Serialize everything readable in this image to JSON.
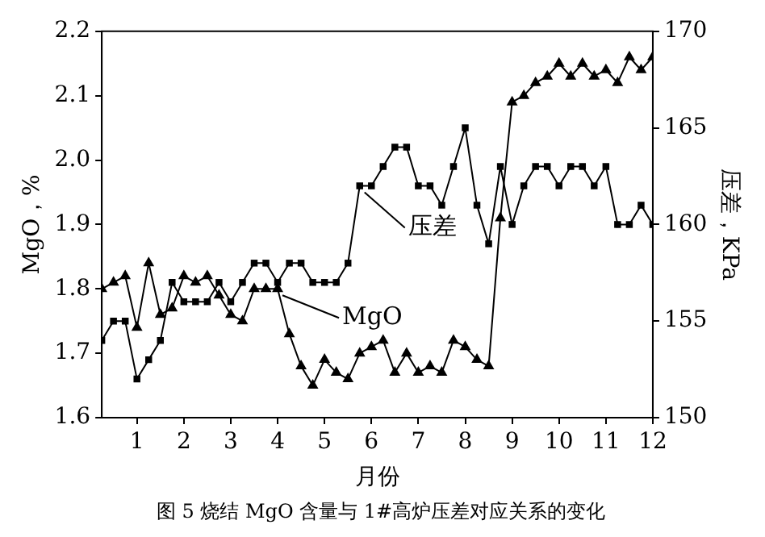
{
  "chart_data": {
    "type": "line",
    "title": "图 5 烧结 MgO 含量与 1#高炉压差对应关系的变化",
    "xlabel": "月份",
    "ylabel": "MgO，%",
    "y2label": "压差，KPa",
    "x": [
      0.25,
      0.5,
      0.75,
      1,
      1.25,
      1.5,
      1.75,
      2,
      2.25,
      2.5,
      2.75,
      3,
      3.25,
      3.5,
      3.75,
      4,
      4.25,
      4.5,
      4.75,
      5,
      5.25,
      5.5,
      5.75,
      6,
      6.25,
      6.5,
      6.75,
      7,
      7.25,
      7.5,
      7.75,
      8,
      8.25,
      8.5,
      8.75,
      9,
      9.25,
      9.5,
      9.75,
      10,
      10.25,
      10.5,
      10.75,
      11,
      11.25,
      11.5,
      11.75,
      12
    ],
    "series": [
      {
        "name": "MgO",
        "color": "#000000",
        "marker": "triangle",
        "values": [
          1.8,
          1.81,
          1.82,
          1.74,
          1.84,
          1.76,
          1.77,
          1.82,
          1.81,
          1.82,
          1.79,
          1.76,
          1.75,
          1.8,
          1.8,
          1.8,
          1.73,
          1.68,
          1.65,
          1.69,
          1.67,
          1.66,
          1.7,
          1.71,
          1.72,
          1.67,
          1.7,
          1.67,
          1.68,
          1.67,
          1.72,
          1.71,
          1.69,
          1.68,
          1.91,
          2.09,
          2.1,
          2.12,
          2.13,
          2.15,
          2.13,
          2.15,
          2.13,
          2.14,
          2.12,
          2.16,
          2.14,
          2.16
        ]
      },
      {
        "name": "压差",
        "color": "#000000",
        "marker": "square",
        "axis": "y2",
        "values": [
          154,
          155,
          155,
          152,
          153,
          154,
          157,
          156,
          156,
          156,
          157,
          156,
          157,
          158,
          158,
          157,
          158,
          158,
          157,
          157,
          157,
          158,
          162,
          162,
          163,
          164,
          164,
          162,
          162,
          161,
          163,
          165,
          161,
          159,
          163,
          160,
          162,
          163,
          163,
          162,
          163,
          163,
          162,
          163,
          160,
          160,
          161,
          160
        ]
      }
    ],
    "xlim": [
      0.25,
      12
    ],
    "xticks": [
      1,
      2,
      3,
      4,
      5,
      6,
      7,
      8,
      9,
      10,
      11,
      12
    ],
    "ylim": [
      1.6,
      2.2
    ],
    "yticks": [
      1.6,
      {
        "value": 1.7,
        "label": "1.7"
      },
      {
        "value": 1.8,
        "label": "1.8"
      },
      {
        "value": 1.9,
        "label": "1.9"
      },
      {
        "value": 2,
        "label": "2.0"
      },
      {
        "value": 2.1,
        "label": "2.1"
      },
      2.2
    ],
    "y2lim": [
      150,
      170
    ],
    "y2ticks": [
      150,
      155,
      160,
      165,
      170
    ],
    "grid": false,
    "legend": "center",
    "line_style": "solid"
  }
}
